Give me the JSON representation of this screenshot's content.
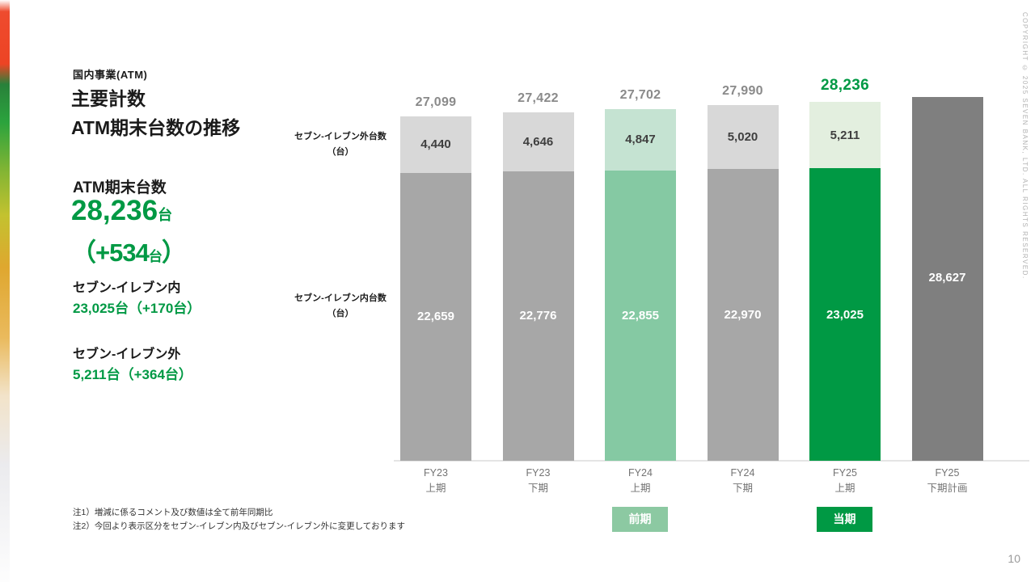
{
  "header": {
    "category": "国内事業(ATM)",
    "title_line1": "主要計数",
    "title_line2": "ATM期末台数の推移"
  },
  "kpi": {
    "label": "ATM期末台数",
    "value": "28,236",
    "unit": "台",
    "change_open": "（",
    "change_value": "+534",
    "change_unit": "台",
    "change_close": "）"
  },
  "breakdown": [
    {
      "label": "セブン-イレブン内",
      "value": "23,025台（+170台）"
    },
    {
      "label": "セブン-イレブン外",
      "value": "5,211台（+364台）"
    }
  ],
  "chart_labels": {
    "outer_line1": "セブン-イレブン外台数",
    "outer_line2": "（台）",
    "inner_line1": "セブン-イレブン内台数",
    "inner_line2": "（台）"
  },
  "badges": {
    "prev": "前期",
    "current": "当期"
  },
  "notes": [
    "注1）増減に係るコメント及び数値は全て前年同期比",
    "注2）今回より表示区分をセブン-イレブン内及びセブン-イレブン外に変更しております"
  ],
  "page_number": "10",
  "copyright": "COPYRIGHT © 2025 SEVEN BANK, LTD. ALL RIGHTS RESERVED.",
  "colors": {
    "green_dark": "#009944",
    "green_mid": "#85c9a3",
    "green_light": "#c5e3d2",
    "green_pale": "#e3efdf",
    "gray_light": "#d8d8d8",
    "gray_mid": "#a7a7a7",
    "gray_dark": "#7f7f7f",
    "badge_prev": "#8cc9a2",
    "total_gray": "#8a8a8a"
  },
  "chart_data": {
    "type": "bar",
    "stacked": true,
    "title": "ATM期末台数の推移",
    "categories": [
      "FY23 上期",
      "FY23 下期",
      "FY24 上期",
      "FY24 下期",
      "FY25 上期",
      "FY25 下期計画"
    ],
    "category_lines": [
      [
        "FY23",
        "上期"
      ],
      [
        "FY23",
        "下期"
      ],
      [
        "FY24",
        "上期"
      ],
      [
        "FY24",
        "下期"
      ],
      [
        "FY25",
        "上期"
      ],
      [
        "FY25",
        "下期計画"
      ]
    ],
    "series": [
      {
        "name": "セブン-イレブン内台数（台）",
        "values": [
          22659,
          22776,
          22855,
          22970,
          23025,
          null
        ]
      },
      {
        "name": "セブン-イレブン外台数（台）",
        "values": [
          4440,
          4646,
          4847,
          5020,
          5211,
          null
        ]
      }
    ],
    "totals": [
      27099,
      27422,
      27702,
      27990,
      28236,
      28627
    ],
    "bar_styles": [
      "past",
      "past",
      "prev",
      "past",
      "current",
      "plan"
    ],
    "ylim": [
      0,
      28627
    ],
    "grid": false,
    "xlabel": "",
    "ylabel": "台",
    "legend_position": "left-axis-labels"
  }
}
